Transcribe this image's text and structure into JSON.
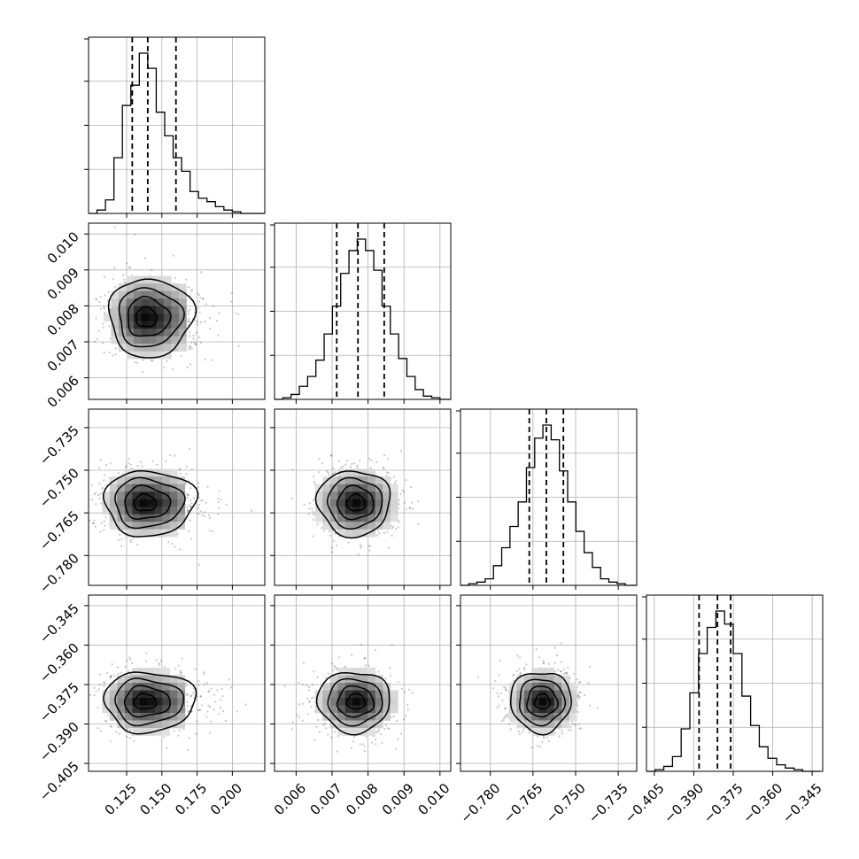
{
  "chart_data": {
    "type": "corner",
    "title": "",
    "parameters": [
      {
        "axis_label": "",
        "range": [
          0.098,
          0.223
        ],
        "ticks": [
          "0.125",
          "0.150",
          "0.175",
          "0.200"
        ],
        "tick_values": [
          0.125,
          0.15,
          0.175,
          0.2
        ]
      },
      {
        "axis_label": "",
        "range": [
          0.0054,
          0.0103
        ],
        "ticks": [
          "0.006",
          "0.007",
          "0.008",
          "0.009",
          "0.010"
        ],
        "tick_values": [
          0.006,
          0.007,
          0.008,
          0.009,
          0.01
        ]
      },
      {
        "axis_label": "",
        "range": [
          -0.7905,
          -0.7285
        ],
        "ticks": [
          "−0.780",
          "−0.765",
          "−0.750",
          "−0.735"
        ],
        "tick_values": [
          -0.78,
          -0.765,
          -0.75,
          -0.735
        ]
      },
      {
        "axis_label": "",
        "range": [
          -0.408,
          -0.341
        ],
        "ticks": [
          "−0.405",
          "−0.390",
          "−0.375",
          "−0.360",
          "−0.345"
        ],
        "tick_values": [
          -0.405,
          -0.39,
          -0.375,
          -0.36,
          -0.345
        ]
      }
    ],
    "histograms": [
      {
        "parameter": 0,
        "quantiles": [
          0.129,
          0.14,
          0.16
        ],
        "bins": [
          0.098,
          0.104,
          0.11,
          0.116,
          0.122,
          0.128,
          0.134,
          0.14,
          0.146,
          0.152,
          0.158,
          0.164,
          0.17,
          0.176,
          0.182,
          0.188,
          0.194,
          0.2,
          0.206,
          0.212,
          0.218,
          0.223
        ],
        "counts": [
          0,
          2,
          8,
          33,
          64,
          76,
          95,
          86,
          60,
          46,
          33,
          25,
          13,
          9,
          7,
          4,
          2,
          1,
          0,
          0,
          0
        ]
      },
      {
        "parameter": 1,
        "quantiles": [
          0.00713,
          0.00772,
          0.00845
        ],
        "bins": [
          0.0054,
          0.00563,
          0.00586,
          0.00609,
          0.00632,
          0.00655,
          0.00678,
          0.00701,
          0.00724,
          0.00747,
          0.0077,
          0.00793,
          0.00816,
          0.00839,
          0.00862,
          0.00885,
          0.00908,
          0.00931,
          0.00954,
          0.00977,
          0.01,
          0.0103
        ],
        "counts": [
          0,
          1,
          3,
          8,
          14,
          24,
          40,
          57,
          77,
          91,
          98,
          91,
          79,
          57,
          40,
          25,
          14,
          6,
          2,
          1,
          0
        ]
      },
      {
        "parameter": 2,
        "quantiles": [
          -0.7663,
          -0.7603,
          -0.7543
        ],
        "bins": [
          -0.7905,
          -0.7876,
          -0.7847,
          -0.7818,
          -0.7789,
          -0.776,
          -0.7731,
          -0.7702,
          -0.7673,
          -0.7644,
          -0.7615,
          -0.7586,
          -0.7557,
          -0.7528,
          -0.7499,
          -0.747,
          -0.7441,
          -0.7412,
          -0.7383,
          -0.7354,
          -0.7325,
          -0.7285
        ],
        "counts": [
          0,
          1,
          2,
          4,
          12,
          23,
          36,
          51,
          72,
          90,
          98,
          89,
          70,
          51,
          33,
          20,
          11,
          4,
          2,
          1,
          0
        ]
      },
      {
        "parameter": 3,
        "quantiles": [
          -0.388,
          -0.381,
          -0.376
        ],
        "bins": [
          -0.408,
          -0.4047,
          -0.4014,
          -0.3981,
          -0.3948,
          -0.3915,
          -0.3882,
          -0.3849,
          -0.3816,
          -0.3783,
          -0.375,
          -0.3717,
          -0.3684,
          -0.3651,
          -0.3618,
          -0.3585,
          -0.3552,
          -0.3519,
          -0.3486,
          -0.3453,
          -0.342
        ],
        "counts": [
          0,
          1,
          3,
          9,
          26,
          48,
          72,
          88,
          98,
          90,
          72,
          46,
          28,
          15,
          8,
          4,
          2,
          1,
          0,
          0
        ]
      }
    ],
    "pairs": [
      {
        "x": 0,
        "y": 1,
        "mean": [
          0.138,
          0.00768
        ],
        "sd": [
          0.012,
          0.00052
        ]
      },
      {
        "x": 0,
        "y": 2,
        "mean": [
          0.137,
          -0.7615
        ],
        "sd": [
          0.013,
          0.0055
        ]
      },
      {
        "x": 1,
        "y": 2,
        "mean": [
          0.00768,
          -0.7615
        ],
        "sd": [
          0.00052,
          0.0055
        ]
      },
      {
        "x": 0,
        "y": 3,
        "mean": [
          0.137,
          -0.3815
        ],
        "sd": [
          0.013,
          0.0055
        ]
      },
      {
        "x": 1,
        "y": 3,
        "mean": [
          0.00768,
          -0.3815
        ],
        "sd": [
          0.00052,
          0.0055
        ]
      },
      {
        "x": 2,
        "y": 3,
        "mean": [
          -0.7615,
          -0.3815
        ],
        "sd": [
          0.0055,
          0.0055
        ]
      }
    ],
    "grid": true,
    "colors": {
      "line": "#000000",
      "grid": "#b0b0b0",
      "points": "#000000"
    }
  }
}
